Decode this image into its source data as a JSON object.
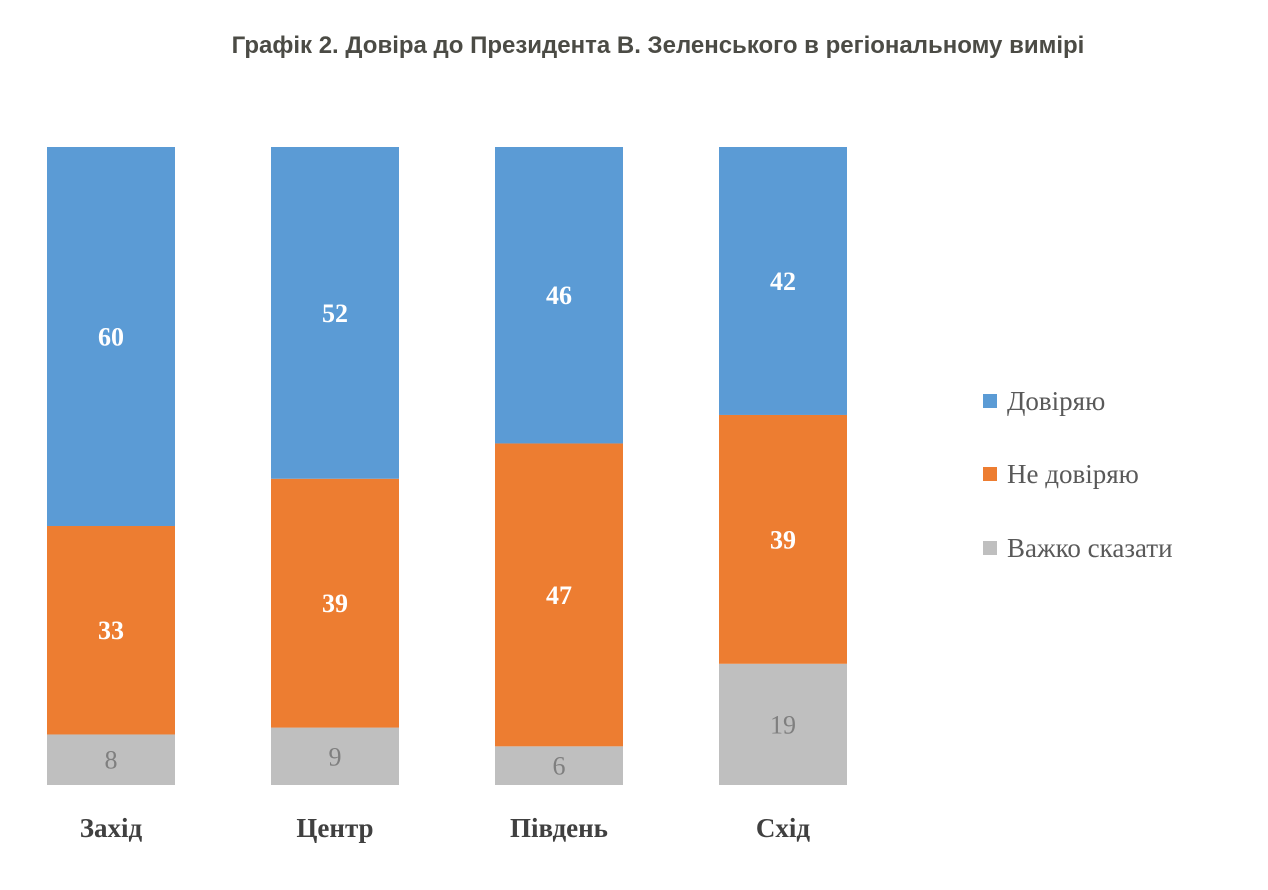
{
  "chart_data": {
    "type": "bar",
    "stacked": true,
    "normalized": true,
    "title": "Графік 2. Довіра до Президента В. Зеленського в регіональному вимірі",
    "xlabel": "",
    "ylabel": "",
    "categories": [
      "Захід",
      "Центр",
      "Південь",
      "Схід"
    ],
    "series": [
      {
        "name": "Довіряю",
        "color": "#5B9BD5",
        "label_color": "#FFFFFF",
        "values": [
          60,
          52,
          46,
          42
        ]
      },
      {
        "name": "Не довіряю",
        "color": "#ED7D31",
        "label_color": "#FFFFFF",
        "values": [
          33,
          39,
          47,
          39
        ]
      },
      {
        "name": "Важко сказати",
        "color": "#BFBFBF",
        "label_color": "#7F7F7F",
        "values": [
          8,
          9,
          6,
          19
        ]
      }
    ],
    "grid": false,
    "axes_visible": false,
    "legend_position": "right"
  }
}
